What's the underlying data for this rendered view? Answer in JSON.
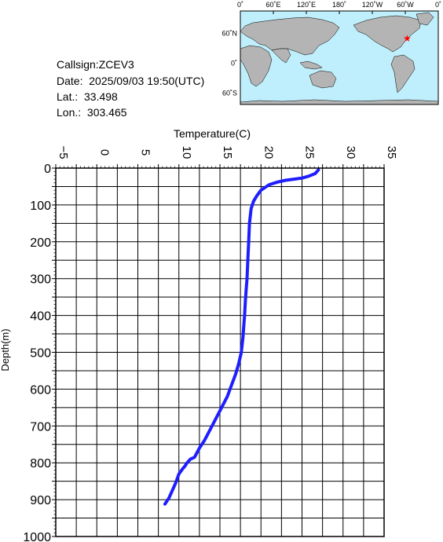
{
  "station": {
    "callsign": "Callsign:ZCEV3",
    "date": "Date:  2025/09/03 19:50(UTC)",
    "lat": "Lat.:  33.498",
    "lon": "Lon.:  303.465"
  },
  "map": {
    "top_labels": [
      "0˚",
      "60˚E",
      "120˚E",
      "180˚",
      "120˚W",
      "60˚W",
      "0˚"
    ],
    "lat_labels": [
      "60˚N",
      "0˚",
      "60˚S"
    ],
    "ocean_color": "#bfeffc",
    "land_color": "#b4b4b4",
    "marker_icon": "red-star-icon",
    "marker_color": "#ff0000",
    "marker_position": {
      "lon": 303.465,
      "lat": 33.498
    }
  },
  "chart_data": {
    "type": "line",
    "title": "",
    "xlabel": "Temperature(C)",
    "ylabel": "Depth(m)",
    "xlim": [
      -5,
      35
    ],
    "ylim": [
      0,
      1000
    ],
    "y_inverted": true,
    "x_ticks": [
      -5,
      0,
      5,
      10,
      15,
      20,
      25,
      30,
      35
    ],
    "y_ticks": [
      0,
      100,
      200,
      300,
      400,
      500,
      600,
      700,
      800,
      900,
      1000
    ],
    "grid": true,
    "line_color": "#1e1eff",
    "series": [
      {
        "x": [
          27.0,
          26.6,
          25.8,
          25.0,
          24.0,
          23.0,
          22.0,
          21.0,
          20.0,
          19.5,
          19.1,
          18.8,
          18.6,
          18.5,
          18.4,
          18.3,
          18.2,
          18.1,
          18.0,
          17.9,
          17.8,
          17.6,
          17.3,
          16.9,
          16.4,
          15.9,
          15.2,
          14.5,
          13.8,
          13.1,
          12.5,
          11.9,
          11.4,
          11.0,
          10.7,
          10.5,
          10.0,
          9.6,
          9.2,
          8.8,
          8.3
        ],
        "y": [
          5,
          15,
          22,
          27,
          30,
          33,
          38,
          45,
          60,
          75,
          90,
          110,
          150,
          200,
          250,
          300,
          330,
          360,
          400,
          430,
          460,
          500,
          530,
          560,
          590,
          620,
          650,
          680,
          710,
          740,
          760,
          785,
          790,
          800,
          810,
          815,
          830,
          855,
          875,
          895,
          912
        ]
      }
    ]
  }
}
